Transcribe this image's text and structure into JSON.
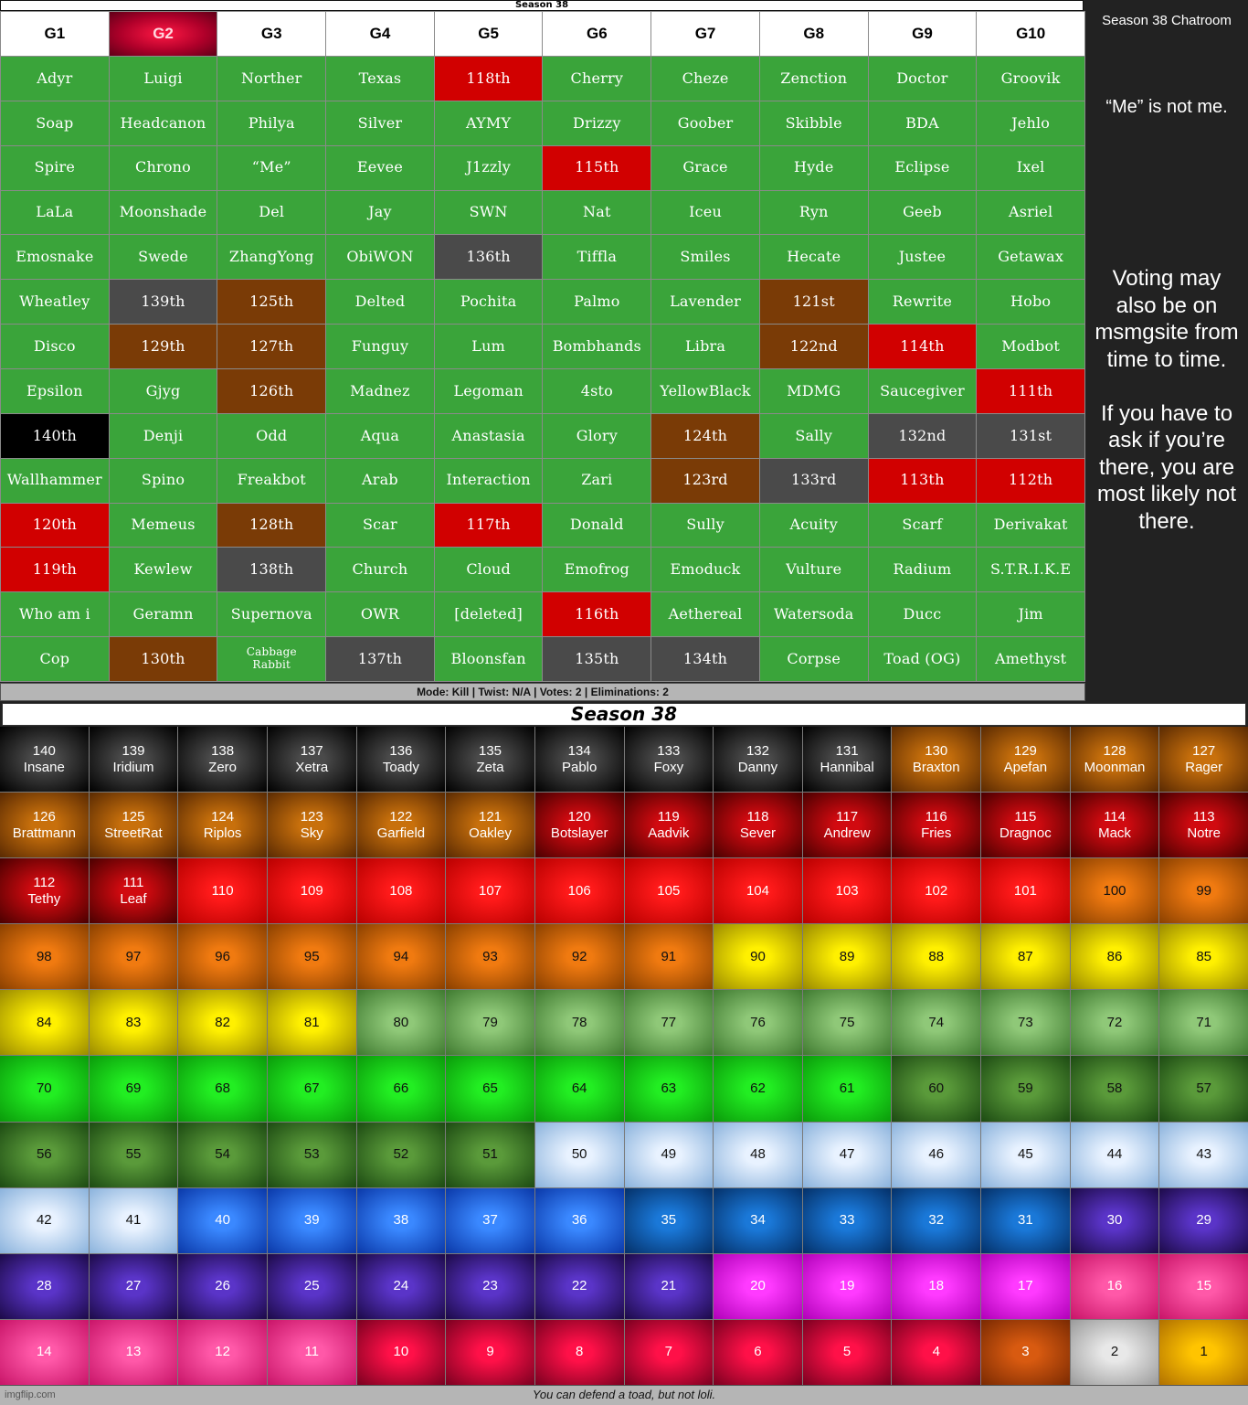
{
  "top_title": "Season 38",
  "game_headers": [
    "G1",
    "G2",
    "G3",
    "G4",
    "G5",
    "G6",
    "G7",
    "G8",
    "G9",
    "G10"
  ],
  "selected_game": "G2",
  "colors": {
    "alive": "#3aa43a",
    "red": "#d10000",
    "brown": "#7a3b06",
    "gray": "#4a4a4a",
    "black": "#000000"
  },
  "grid_rows": [
    [
      [
        "Adyr",
        "g"
      ],
      [
        "Luigi",
        "g"
      ],
      [
        "Norther",
        "g"
      ],
      [
        "Texas",
        "g"
      ],
      [
        "118th",
        "r"
      ],
      [
        "Cherry",
        "g"
      ],
      [
        "Cheze",
        "g"
      ],
      [
        "Zenction",
        "g"
      ],
      [
        "Doctor",
        "g"
      ],
      [
        "Groovik",
        "g"
      ]
    ],
    [
      [
        "Soap",
        "g"
      ],
      [
        "Headcanon",
        "g"
      ],
      [
        "Philya",
        "g"
      ],
      [
        "Silver",
        "g"
      ],
      [
        "AYMY",
        "g"
      ],
      [
        "Drizzy",
        "g"
      ],
      [
        "Goober",
        "g"
      ],
      [
        "Skibble",
        "g"
      ],
      [
        "BDA",
        "g"
      ],
      [
        "Jehlo",
        "g"
      ]
    ],
    [
      [
        "Spire",
        "g"
      ],
      [
        "Chrono",
        "g"
      ],
      [
        "“Me”",
        "g"
      ],
      [
        "Eevee",
        "g"
      ],
      [
        "J1zzly",
        "g"
      ],
      [
        "115th",
        "r"
      ],
      [
        "Grace",
        "g"
      ],
      [
        "Hyde",
        "g"
      ],
      [
        "Eclipse",
        "g"
      ],
      [
        "Ixel",
        "g"
      ]
    ],
    [
      [
        "LaLa",
        "g"
      ],
      [
        "Moonshade",
        "g"
      ],
      [
        "Del",
        "g"
      ],
      [
        "Jay",
        "g"
      ],
      [
        "SWN",
        "g"
      ],
      [
        "Nat",
        "g"
      ],
      [
        "Iceu",
        "g"
      ],
      [
        "Ryn",
        "g"
      ],
      [
        "Geeb",
        "g"
      ],
      [
        "Asriel",
        "g"
      ]
    ],
    [
      [
        "Emosnake",
        "g"
      ],
      [
        "Swede",
        "g"
      ],
      [
        "ZhangYong",
        "g"
      ],
      [
        "ObiWON",
        "g"
      ],
      [
        "136th",
        "d"
      ],
      [
        "Tiffla",
        "g"
      ],
      [
        "Smiles",
        "g"
      ],
      [
        "Hecate",
        "g"
      ],
      [
        "Justee",
        "g"
      ],
      [
        "Getawax",
        "g"
      ]
    ],
    [
      [
        "Wheatley",
        "g"
      ],
      [
        "139th",
        "d"
      ],
      [
        "125th",
        "b"
      ],
      [
        "Delted",
        "g"
      ],
      [
        "Pochita",
        "g"
      ],
      [
        "Palmo",
        "g"
      ],
      [
        "Lavender",
        "g"
      ],
      [
        "121st",
        "b"
      ],
      [
        "Rewrite",
        "g"
      ],
      [
        "Hobo",
        "g"
      ]
    ],
    [
      [
        "Disco",
        "g"
      ],
      [
        "129th",
        "b"
      ],
      [
        "127th",
        "b"
      ],
      [
        "Funguy",
        "g"
      ],
      [
        "Lum",
        "g"
      ],
      [
        "Bombhands",
        "g"
      ],
      [
        "Libra",
        "g"
      ],
      [
        "122nd",
        "b"
      ],
      [
        "114th",
        "r"
      ],
      [
        "Modbot",
        "g"
      ]
    ],
    [
      [
        "Epsilon",
        "g"
      ],
      [
        "Gjyg",
        "g"
      ],
      [
        "126th",
        "b"
      ],
      [
        "Madnez",
        "g"
      ],
      [
        "Legoman",
        "g"
      ],
      [
        "4sto",
        "g"
      ],
      [
        "YellowBlack",
        "g"
      ],
      [
        "MDMG",
        "g"
      ],
      [
        "Saucegiver",
        "g"
      ],
      [
        "111th",
        "r"
      ]
    ],
    [
      [
        "140th",
        "k"
      ],
      [
        "Denji",
        "g"
      ],
      [
        "Odd",
        "g"
      ],
      [
        "Aqua",
        "g"
      ],
      [
        "Anastasia",
        "g"
      ],
      [
        "Glory",
        "g"
      ],
      [
        "124th",
        "b"
      ],
      [
        "Sally",
        "g"
      ],
      [
        "132nd",
        "d"
      ],
      [
        "131st",
        "d"
      ]
    ],
    [
      [
        "Wallhammer",
        "g"
      ],
      [
        "Spino",
        "g"
      ],
      [
        "Freakbot",
        "g"
      ],
      [
        "Arab",
        "g"
      ],
      [
        "Interaction",
        "g"
      ],
      [
        "Zari",
        "g"
      ],
      [
        "123rd",
        "b"
      ],
      [
        "133rd",
        "d"
      ],
      [
        "113th",
        "r"
      ],
      [
        "112th",
        "r"
      ]
    ],
    [
      [
        "120th",
        "r"
      ],
      [
        "Memeus",
        "g"
      ],
      [
        "128th",
        "b"
      ],
      [
        "Scar",
        "g"
      ],
      [
        "117th",
        "r"
      ],
      [
        "Donald",
        "g"
      ],
      [
        "Sully",
        "g"
      ],
      [
        "Acuity",
        "g"
      ],
      [
        "Scarf",
        "g"
      ],
      [
        "Derivakat",
        "g"
      ]
    ],
    [
      [
        "119th",
        "r"
      ],
      [
        "Kewlew",
        "g"
      ],
      [
        "138th",
        "d"
      ],
      [
        "Church",
        "g"
      ],
      [
        "Cloud",
        "g"
      ],
      [
        "Emofrog",
        "g"
      ],
      [
        "Emoduck",
        "g"
      ],
      [
        "Vulture",
        "g"
      ],
      [
        "Radium",
        "g"
      ],
      [
        "S.T.R.I.K.E",
        "g"
      ]
    ],
    [
      [
        "Who am i",
        "g"
      ],
      [
        "Geramn",
        "g"
      ],
      [
        "Supernova",
        "g"
      ],
      [
        "OWR",
        "g"
      ],
      [
        "[deleted]",
        "g"
      ],
      [
        "116th",
        "r"
      ],
      [
        "Aethereal",
        "g"
      ],
      [
        "Watersoda",
        "g"
      ],
      [
        "Ducc",
        "g"
      ],
      [
        "Jim",
        "g"
      ]
    ],
    [
      [
        "Cop",
        "g"
      ],
      [
        "130th",
        "b"
      ],
      [
        "Cabbage Rabbit",
        "g"
      ],
      [
        "137th",
        "d"
      ],
      [
        "Bloonsfan",
        "g"
      ],
      [
        "135th",
        "d"
      ],
      [
        "134th",
        "d"
      ],
      [
        "Corpse",
        "g"
      ],
      [
        "Toad (OG)",
        "g"
      ],
      [
        "Amethyst",
        "g"
      ]
    ]
  ],
  "chat": {
    "title": "Season 38 Chatroom",
    "note": "“Me” is not me.",
    "message": "Voting may also be on msmgsite from time to time.\n\nIf you have to ask if you’re there, you are most likely not there."
  },
  "mode_bar": "Mode: Kill | Twist: N/A | Votes: 2 | Eliminations: 2",
  "season_title": "Season 38",
  "rank_tiers": {
    "black": [
      "#4a4a4a",
      "#000000"
    ],
    "brown": [
      "#c8700c",
      "#5a2a02"
    ],
    "maroon": [
      "#d10a10",
      "#4a0000"
    ],
    "red": [
      "#ff1a1a",
      "#b80000"
    ],
    "orange": [
      "#f07a10",
      "#8a4000"
    ],
    "yellow": [
      "#fff000",
      "#9a8a00"
    ],
    "sage": [
      "#8fc878",
      "#3f7a30"
    ],
    "lime": [
      "#22ee22",
      "#0a9a0a"
    ],
    "forest": [
      "#5a9a3a",
      "#1c4a12"
    ],
    "sky": [
      "#e8f2ff",
      "#8ab2dc"
    ],
    "blue": [
      "#3a88ff",
      "#0a38a8"
    ],
    "navy": [
      "#1a78d8",
      "#043068"
    ],
    "indigo": [
      "#5a34c8",
      "#1c0a48"
    ],
    "magenta": [
      "#ff3aff",
      "#b000b8"
    ],
    "pink": [
      "#ff58a8",
      "#c81468"
    ],
    "crimson": [
      "#ff1048",
      "#7a0020"
    ],
    "bronze": [
      "#d85a10",
      "#7a2a02"
    ],
    "silver": [
      "#e8e8e8",
      "#9a9a9a"
    ],
    "gold": [
      "#ffc400",
      "#b07000"
    ]
  },
  "ranks": [
    [
      "140",
      "Insane",
      "black"
    ],
    [
      "139",
      "Iridium",
      "black"
    ],
    [
      "138",
      "Zero",
      "black"
    ],
    [
      "137",
      "Xetra",
      "black"
    ],
    [
      "136",
      "Toady",
      "black"
    ],
    [
      "135",
      "Zeta",
      "black"
    ],
    [
      "134",
      "Pablo",
      "black"
    ],
    [
      "133",
      "Foxy",
      "black"
    ],
    [
      "132",
      "Danny",
      "black"
    ],
    [
      "131",
      "Hannibal",
      "black"
    ],
    [
      "130",
      "Braxton",
      "brown"
    ],
    [
      "129",
      "Apefan",
      "brown"
    ],
    [
      "128",
      "Moonman",
      "brown"
    ],
    [
      "127",
      "Rager",
      "brown"
    ],
    [
      "126",
      "Brattmann",
      "brown"
    ],
    [
      "125",
      "StreetRat",
      "brown"
    ],
    [
      "124",
      "Riplos",
      "brown"
    ],
    [
      "123",
      "Sky",
      "brown"
    ],
    [
      "122",
      "Garfield",
      "brown"
    ],
    [
      "121",
      "Oakley",
      "brown"
    ],
    [
      "120",
      "Botslayer",
      "maroon"
    ],
    [
      "119",
      "Aadvik",
      "maroon"
    ],
    [
      "118",
      "Sever",
      "maroon"
    ],
    [
      "117",
      "Andrew",
      "maroon"
    ],
    [
      "116",
      "Fries",
      "maroon"
    ],
    [
      "115",
      "Dragnoc",
      "maroon"
    ],
    [
      "114",
      "Mack",
      "maroon"
    ],
    [
      "113",
      "Notre",
      "maroon"
    ],
    [
      "112",
      "Tethy",
      "maroon"
    ],
    [
      "111",
      "Leaf",
      "maroon"
    ],
    [
      "110",
      "",
      "red"
    ],
    [
      "109",
      "",
      "red"
    ],
    [
      "108",
      "",
      "red"
    ],
    [
      "107",
      "",
      "red"
    ],
    [
      "106",
      "",
      "red"
    ],
    [
      "105",
      "",
      "red"
    ],
    [
      "104",
      "",
      "red"
    ],
    [
      "103",
      "",
      "red"
    ],
    [
      "102",
      "",
      "red"
    ],
    [
      "101",
      "",
      "red"
    ],
    [
      "100",
      "",
      "orange"
    ],
    [
      "99",
      "",
      "orange"
    ],
    [
      "98",
      "",
      "orange"
    ],
    [
      "97",
      "",
      "orange"
    ],
    [
      "96",
      "",
      "orange"
    ],
    [
      "95",
      "",
      "orange"
    ],
    [
      "94",
      "",
      "orange"
    ],
    [
      "93",
      "",
      "orange"
    ],
    [
      "92",
      "",
      "orange"
    ],
    [
      "91",
      "",
      "orange"
    ],
    [
      "90",
      "",
      "yellow"
    ],
    [
      "89",
      "",
      "yellow"
    ],
    [
      "88",
      "",
      "yellow"
    ],
    [
      "87",
      "",
      "yellow"
    ],
    [
      "86",
      "",
      "yellow"
    ],
    [
      "85",
      "",
      "yellow"
    ],
    [
      "84",
      "",
      "yellow"
    ],
    [
      "83",
      "",
      "yellow"
    ],
    [
      "82",
      "",
      "yellow"
    ],
    [
      "81",
      "",
      "yellow"
    ],
    [
      "80",
      "",
      "sage"
    ],
    [
      "79",
      "",
      "sage"
    ],
    [
      "78",
      "",
      "sage"
    ],
    [
      "77",
      "",
      "sage"
    ],
    [
      "76",
      "",
      "sage"
    ],
    [
      "75",
      "",
      "sage"
    ],
    [
      "74",
      "",
      "sage"
    ],
    [
      "73",
      "",
      "sage"
    ],
    [
      "72",
      "",
      "sage"
    ],
    [
      "71",
      "",
      "sage"
    ],
    [
      "70",
      "",
      "lime"
    ],
    [
      "69",
      "",
      "lime"
    ],
    [
      "68",
      "",
      "lime"
    ],
    [
      "67",
      "",
      "lime"
    ],
    [
      "66",
      "",
      "lime"
    ],
    [
      "65",
      "",
      "lime"
    ],
    [
      "64",
      "",
      "lime"
    ],
    [
      "63",
      "",
      "lime"
    ],
    [
      "62",
      "",
      "lime"
    ],
    [
      "61",
      "",
      "lime"
    ],
    [
      "60",
      "",
      "forest"
    ],
    [
      "59",
      "",
      "forest"
    ],
    [
      "58",
      "",
      "forest"
    ],
    [
      "57",
      "",
      "forest"
    ],
    [
      "56",
      "",
      "forest"
    ],
    [
      "55",
      "",
      "forest"
    ],
    [
      "54",
      "",
      "forest"
    ],
    [
      "53",
      "",
      "forest"
    ],
    [
      "52",
      "",
      "forest"
    ],
    [
      "51",
      "",
      "forest"
    ],
    [
      "50",
      "",
      "sky"
    ],
    [
      "49",
      "",
      "sky"
    ],
    [
      "48",
      "",
      "sky"
    ],
    [
      "47",
      "",
      "sky"
    ],
    [
      "46",
      "",
      "sky"
    ],
    [
      "45",
      "",
      "sky"
    ],
    [
      "44",
      "",
      "sky"
    ],
    [
      "43",
      "",
      "sky"
    ],
    [
      "42",
      "",
      "sky"
    ],
    [
      "41",
      "",
      "sky"
    ],
    [
      "40",
      "",
      "blue"
    ],
    [
      "39",
      "",
      "blue"
    ],
    [
      "38",
      "",
      "blue"
    ],
    [
      "37",
      "",
      "blue"
    ],
    [
      "36",
      "",
      "blue"
    ],
    [
      "35",
      "",
      "navy"
    ],
    [
      "34",
      "",
      "navy"
    ],
    [
      "33",
      "",
      "navy"
    ],
    [
      "32",
      "",
      "navy"
    ],
    [
      "31",
      "",
      "navy"
    ],
    [
      "30",
      "",
      "indigo"
    ],
    [
      "29",
      "",
      "indigo"
    ],
    [
      "28",
      "",
      "indigo"
    ],
    [
      "27",
      "",
      "indigo"
    ],
    [
      "26",
      "",
      "indigo"
    ],
    [
      "25",
      "",
      "indigo"
    ],
    [
      "24",
      "",
      "indigo"
    ],
    [
      "23",
      "",
      "indigo"
    ],
    [
      "22",
      "",
      "indigo"
    ],
    [
      "21",
      "",
      "indigo"
    ],
    [
      "20",
      "",
      "magenta"
    ],
    [
      "19",
      "",
      "magenta"
    ],
    [
      "18",
      "",
      "magenta"
    ],
    [
      "17",
      "",
      "magenta"
    ],
    [
      "16",
      "",
      "pink"
    ],
    [
      "15",
      "",
      "pink"
    ],
    [
      "14",
      "",
      "pink"
    ],
    [
      "13",
      "",
      "pink"
    ],
    [
      "12",
      "",
      "pink"
    ],
    [
      "11",
      "",
      "pink"
    ],
    [
      "10",
      "",
      "crimson"
    ],
    [
      "9",
      "",
      "crimson"
    ],
    [
      "8",
      "",
      "crimson"
    ],
    [
      "7",
      "",
      "crimson"
    ],
    [
      "6",
      "",
      "crimson"
    ],
    [
      "5",
      "",
      "crimson"
    ],
    [
      "4",
      "",
      "crimson"
    ],
    [
      "3",
      "",
      "bronze"
    ],
    [
      "2",
      "",
      "silver"
    ],
    [
      "1",
      "",
      "gold"
    ]
  ],
  "dark_text_tiers": [
    "orange",
    "yellow",
    "sage",
    "lime",
    "forest",
    "sky",
    "silver",
    "gold"
  ],
  "footer_note": "You can defend a toad, but not loli.",
  "watermark": "imgflip.com"
}
